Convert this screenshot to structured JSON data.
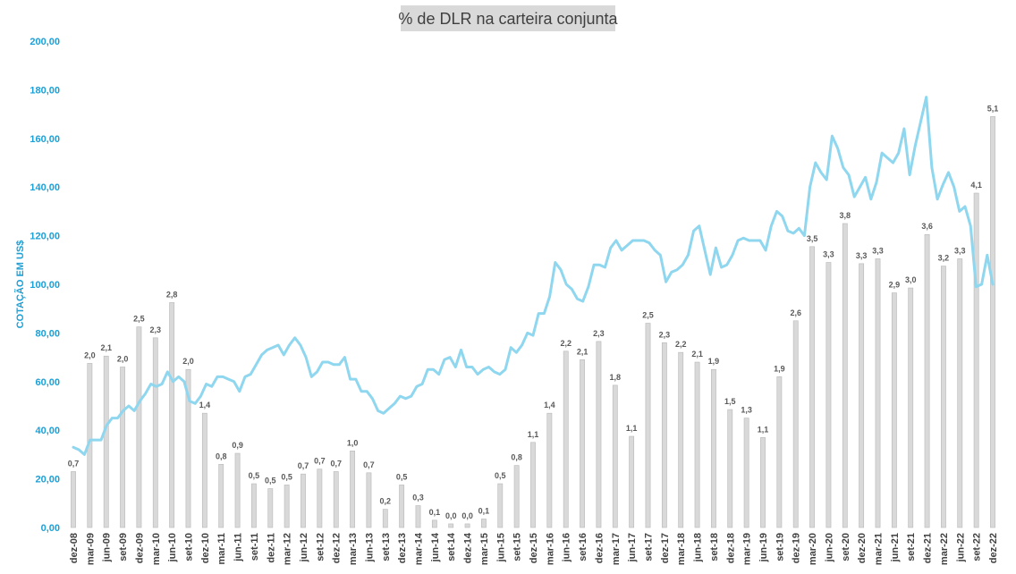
{
  "chart_data": {
    "type": "bar+line",
    "title": "% de DLR na carteira conjunta",
    "ylabel": "COTAÇÃO EM US$",
    "ylim": [
      0,
      200
    ],
    "yticks": [
      "0,00",
      "20,00",
      "40,00",
      "60,00",
      "80,00",
      "100,00",
      "120,00",
      "140,00",
      "160,00",
      "180,00",
      "200,00"
    ],
    "colors": {
      "bars": "#d9d9d9",
      "line": "#8fd6ef",
      "axis_text": "#1ca0d6"
    },
    "x_labels": [
      "dez-08",
      "mar-09",
      "jun-09",
      "set-09",
      "dez-09",
      "mar-10",
      "jun-10",
      "set-10",
      "dez-10",
      "mar-11",
      "jun-11",
      "set-11",
      "dez-11",
      "mar-12",
      "jun-12",
      "set-12",
      "dez-12",
      "mar-13",
      "jun-13",
      "set-13",
      "dez-13",
      "mar-14",
      "jun-14",
      "set-14",
      "dez-14",
      "mar-15",
      "jun-15",
      "set-15",
      "dez-15",
      "mar-16",
      "jun-16",
      "set-16",
      "dez-16",
      "mar-17",
      "jun-17",
      "set-17",
      "dez-17",
      "mar-18",
      "jun-18",
      "set-18",
      "dez-18",
      "mar-19",
      "jun-19",
      "set-19",
      "dez-19",
      "mar-20",
      "jun-20",
      "set-20",
      "dez-20",
      "mar-21",
      "jun-21",
      "set-21",
      "dez-21",
      "mar-22",
      "jun-22",
      "set-22",
      "dez-22"
    ],
    "bars": {
      "labels": [
        "0,7",
        "2,0",
        "2,1",
        "2,0",
        "2,5",
        "2,3",
        "2,8",
        "2,0",
        "1,4",
        "0,8",
        "0,9",
        "0,5",
        "0,5",
        "0,5",
        "0,7",
        "0,7",
        "0,7",
        "1,0",
        "0,7",
        "0,2",
        "0,5",
        "0,3",
        "0,1",
        "0,0",
        "0,0",
        "0,1",
        "0,5",
        "0,8",
        "1,1",
        "1,4",
        "2,2",
        "2,1",
        "2,3",
        "1,8",
        "1,1",
        "2,5",
        "2,3",
        "2,2",
        "2,1",
        "1,9",
        "1,5",
        "1,3",
        "1,1",
        "1,9",
        "2,6",
        "3,5",
        "3,3",
        "3,8",
        "3,3",
        "3,3",
        "2,9",
        "3,0",
        "3,6",
        "3,2",
        "3,3",
        "4,1",
        "5,1"
      ],
      "values": [
        23,
        67.5,
        70.5,
        66,
        82.5,
        78,
        92.5,
        65,
        47,
        26,
        30.5,
        18,
        16,
        17.5,
        22,
        24,
        23,
        31.5,
        22.5,
        7.5,
        17.5,
        9,
        3,
        1.5,
        1.5,
        3.5,
        18,
        25.5,
        35,
        47,
        72.5,
        69,
        76.5,
        58.5,
        37.5,
        84,
        76,
        72,
        68,
        65,
        48.5,
        45,
        37,
        62,
        85,
        115.5,
        109,
        125,
        108.5,
        110.5,
        96.5,
        98.5,
        120.5,
        107.5,
        110.5,
        137.5,
        169
      ]
    },
    "line": {
      "values": [
        33,
        32,
        30,
        36,
        36,
        36,
        42,
        45,
        45,
        48,
        50,
        48,
        52,
        55,
        59,
        58,
        59,
        64,
        60,
        62,
        60,
        52,
        51,
        54,
        59,
        58,
        62,
        62,
        61,
        60,
        56,
        62,
        63,
        67,
        71,
        73,
        74,
        75,
        71,
        75,
        78,
        75,
        70,
        62,
        64,
        68,
        68,
        67,
        67,
        70,
        61,
        61,
        56,
        56,
        53,
        48,
        47,
        49,
        51,
        54,
        53,
        54,
        58,
        59,
        65,
        65,
        63,
        69,
        70,
        66,
        73,
        66,
        66,
        63,
        65,
        66,
        64,
        63,
        65,
        74,
        72,
        75,
        80,
        79,
        88,
        88,
        95,
        109,
        106,
        100,
        98,
        94,
        93,
        99,
        108,
        108,
        107,
        115,
        118,
        114,
        116,
        118,
        118,
        118,
        117,
        114,
        112,
        101,
        105,
        106,
        108,
        112,
        122,
        124,
        114,
        104,
        115,
        107,
        108,
        112,
        118,
        119,
        118,
        118,
        118,
        114,
        124,
        130,
        128,
        122,
        121,
        123,
        120,
        140,
        150,
        146,
        143,
        161,
        156,
        148,
        145,
        136,
        140,
        144,
        135,
        142,
        154,
        152,
        150,
        154,
        164,
        145,
        157,
        167,
        177,
        148,
        135,
        141,
        146,
        140,
        130,
        132,
        124,
        99,
        100,
        112,
        100
      ]
    }
  }
}
